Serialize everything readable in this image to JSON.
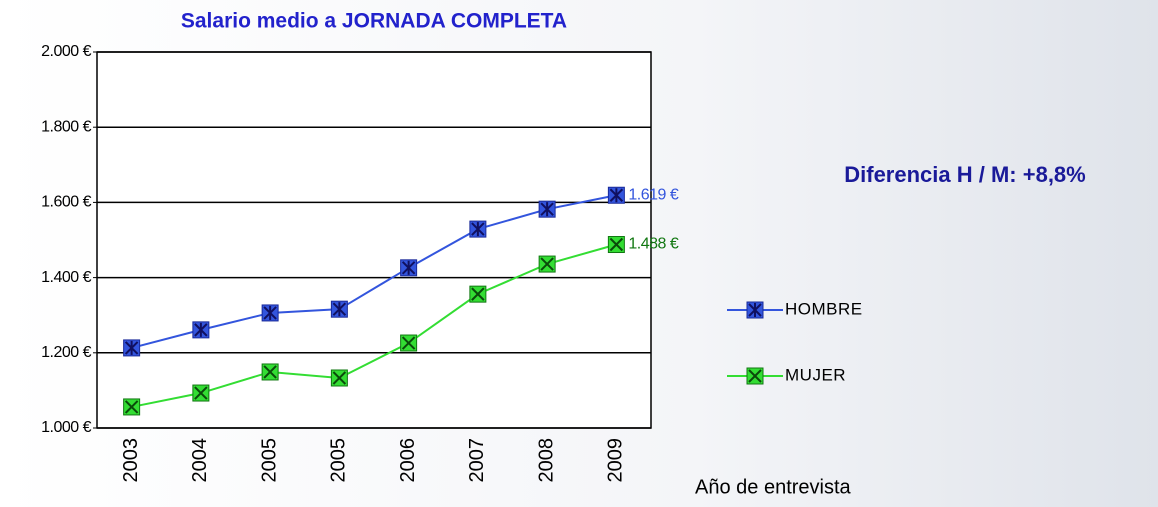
{
  "chart_data": {
    "type": "line",
    "title": "Salario medio a JORNADA COMPLETA",
    "annotation": "Diferencia H / M: +8,8%",
    "xlabel": "Año de entrevista",
    "categories": [
      "2003",
      "2004",
      "2005",
      "2005",
      "2006",
      "2007",
      "2008",
      "2009"
    ],
    "series": [
      {
        "name": "HOMBRE",
        "color": "#3355dd",
        "values": [
          1213,
          1261,
          1306,
          1316,
          1426,
          1529,
          1582,
          1619
        ],
        "value_labels": [
          null,
          null,
          null,
          null,
          null,
          null,
          null,
          "1.619 €"
        ]
      },
      {
        "name": "MUJER",
        "color": "#33dd33",
        "values": [
          1056,
          1093,
          1149,
          1133,
          1226,
          1356,
          1436,
          1488
        ],
        "value_labels": [
          null,
          null,
          null,
          null,
          null,
          null,
          null,
          "1.488 €"
        ]
      }
    ],
    "ylim": [
      1000,
      2000
    ],
    "yticks": [
      {
        "value": 1000,
        "label": "1.000 €"
      },
      {
        "value": 1200,
        "label": "1.200 €"
      },
      {
        "value": 1400,
        "label": "1.400 €"
      },
      {
        "value": 1600,
        "label": "1.600 €"
      },
      {
        "value": 1800,
        "label": "1.800 €"
      },
      {
        "value": 2000,
        "label": "2.000 €"
      }
    ],
    "grid": true
  }
}
